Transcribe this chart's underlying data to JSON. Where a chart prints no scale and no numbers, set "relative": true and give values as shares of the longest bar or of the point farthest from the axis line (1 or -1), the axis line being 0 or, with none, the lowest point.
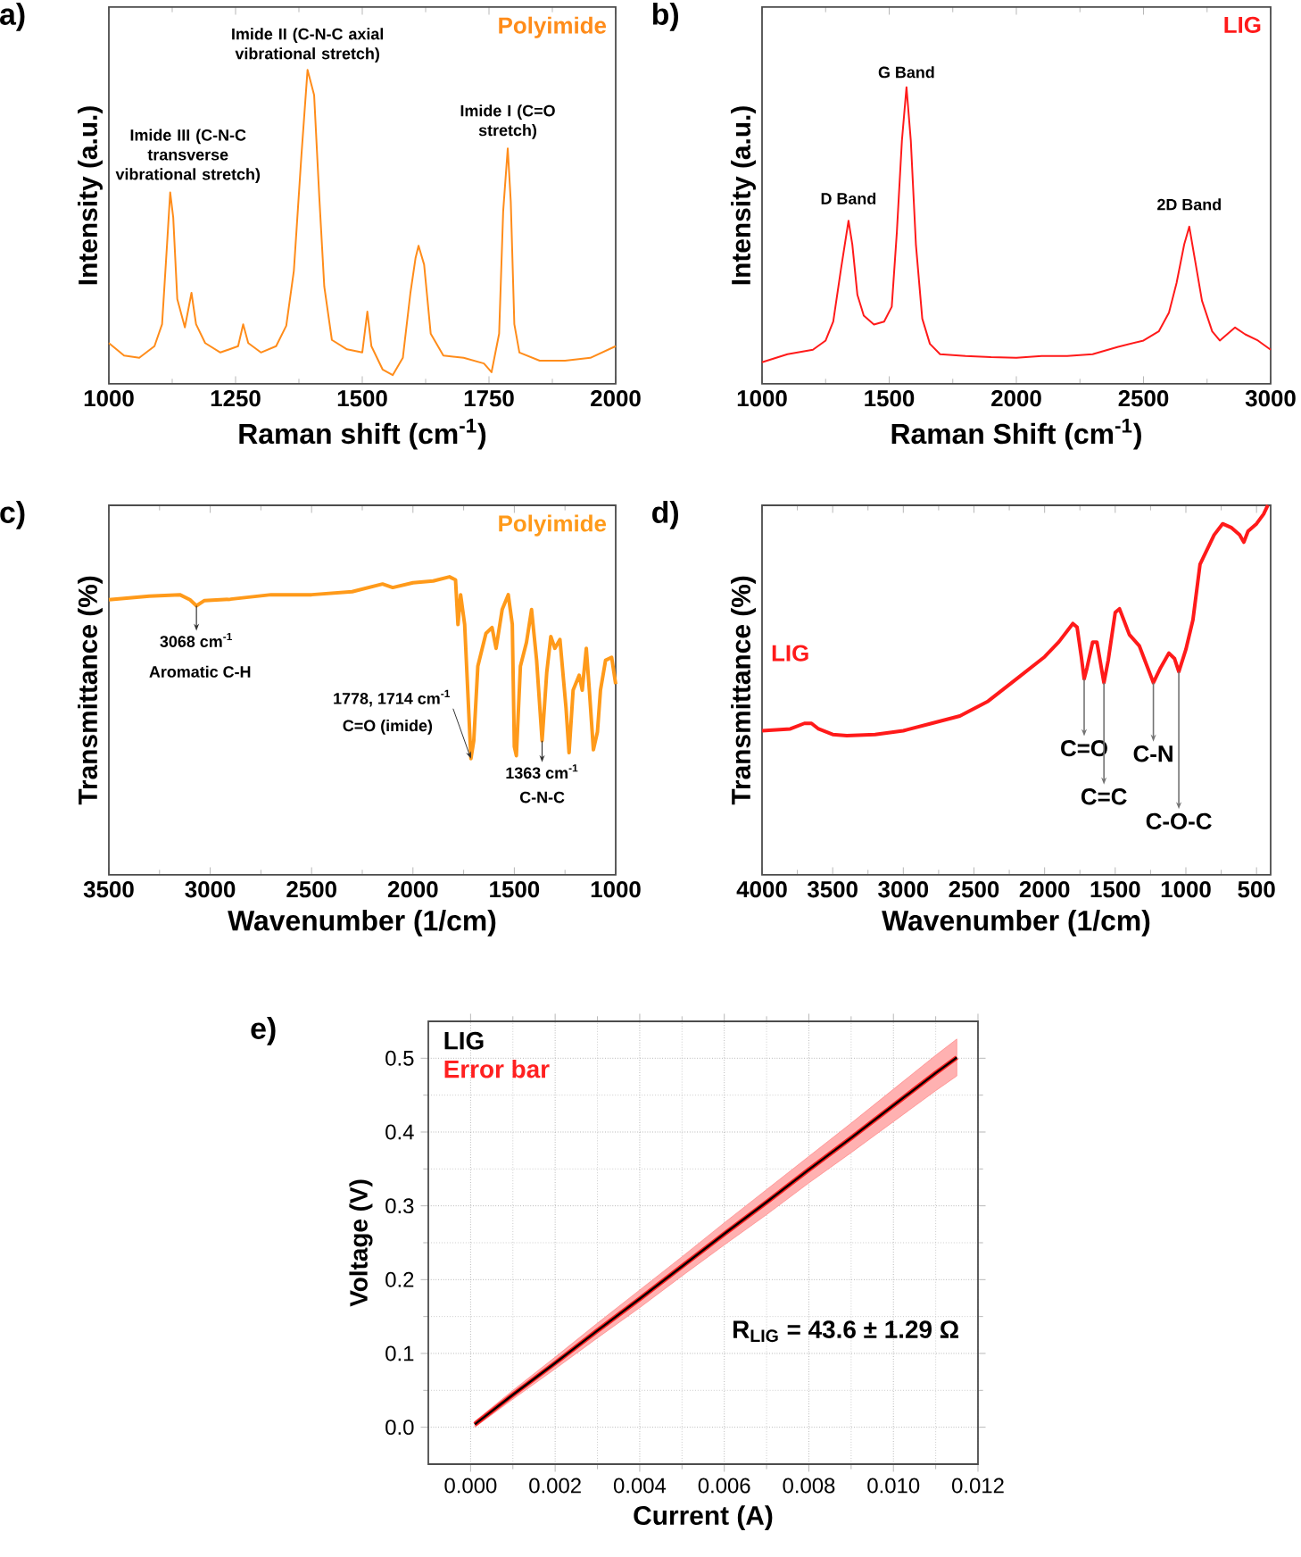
{
  "chart_data": [
    {
      "type": "line",
      "title": "a)",
      "xlabel": "Raman shift (cm$^{-1}$)",
      "ylabel": "Intensity (a.u.)",
      "relative": true,
      "xlim": [
        1000,
        2000
      ],
      "xticks": [
        1000,
        1250,
        1500,
        1750,
        2000
      ],
      "legend": "top right",
      "series": [
        {
          "name": "Polyimide",
          "color": "#ff8c1a",
          "x": [
            1000,
            1030,
            1060,
            1090,
            1105,
            1115,
            1121,
            1127,
            1135,
            1150,
            1163,
            1172,
            1190,
            1220,
            1255,
            1265,
            1275,
            1300,
            1330,
            1350,
            1365,
            1380,
            1392,
            1405,
            1415,
            1425,
            1440,
            1470,
            1500,
            1510,
            1518,
            1540,
            1560,
            1580,
            1595,
            1605,
            1611,
            1622,
            1635,
            1660,
            1700,
            1740,
            1755,
            1770,
            1778,
            1787,
            1793,
            1800,
            1810,
            1850,
            1900,
            1950,
            2000
          ],
          "values": [
            0.13,
            0.09,
            0.083,
            0.12,
            0.19,
            0.45,
            0.61,
            0.53,
            0.27,
            0.18,
            0.29,
            0.19,
            0.13,
            0.1,
            0.12,
            0.19,
            0.13,
            0.1,
            0.12,
            0.185,
            0.36,
            0.73,
            1.0,
            0.92,
            0.6,
            0.31,
            0.14,
            0.11,
            0.1,
            0.23,
            0.12,
            0.046,
            0.028,
            0.083,
            0.29,
            0.4,
            0.44,
            0.38,
            0.16,
            0.09,
            0.083,
            0.065,
            0.037,
            0.16,
            0.55,
            0.75,
            0.58,
            0.19,
            0.1,
            0.074,
            0.074,
            0.083,
            0.12
          ]
        }
      ],
      "annotations": [
        {
          "text": "Imide III (C-N-C transverse vibrational stretch)",
          "x": 1121,
          "y": 0.61
        },
        {
          "text": "Imide II (C-N-C axial vibrational stretch)",
          "x": 1392,
          "y": 1.0
        },
        {
          "text": "Imide I (C=O stretch)",
          "x": 1787,
          "y": 0.75
        }
      ]
    },
    {
      "type": "line",
      "title": "b)",
      "xlabel": "Raman Shift (cm$^{-1}$)",
      "ylabel": "Intensity (a.u.)",
      "relative": true,
      "xlim": [
        1000,
        3000
      ],
      "xticks": [
        1000,
        1500,
        2000,
        2500,
        3000
      ],
      "legend": "top right",
      "series": [
        {
          "name": "LIG",
          "color": "#ff1a1a",
          "x": [
            1000,
            1100,
            1200,
            1250,
            1280,
            1310,
            1340,
            1355,
            1375,
            1400,
            1440,
            1480,
            1510,
            1530,
            1550,
            1568,
            1585,
            1605,
            1630,
            1660,
            1700,
            1800,
            1900,
            2000,
            2100,
            2200,
            2300,
            2400,
            2500,
            2560,
            2600,
            2630,
            2660,
            2680,
            2700,
            2730,
            2770,
            2800,
            2860,
            2900,
            2950,
            3000
          ],
          "values": [
            0.073,
            0.1,
            0.115,
            0.146,
            0.21,
            0.385,
            0.55,
            0.47,
            0.3,
            0.23,
            0.2,
            0.21,
            0.26,
            0.51,
            0.82,
            1.0,
            0.82,
            0.47,
            0.22,
            0.135,
            0.1,
            0.094,
            0.09,
            0.088,
            0.094,
            0.094,
            0.1,
            0.125,
            0.146,
            0.177,
            0.24,
            0.34,
            0.47,
            0.53,
            0.43,
            0.28,
            0.177,
            0.146,
            0.19,
            0.167,
            0.146,
            0.115
          ]
        }
      ],
      "annotations": [
        {
          "text": "D Band",
          "x": 1340,
          "y": 0.55
        },
        {
          "text": "G Band",
          "x": 1568,
          "y": 1.0
        },
        {
          "text": "2D Band",
          "x": 2680,
          "y": 0.53
        }
      ]
    },
    {
      "type": "line",
      "title": "c)",
      "xlabel": "Wavenumber (1/cm)",
      "ylabel": "Transmittance (%)",
      "relative": true,
      "xlim": [
        3500,
        1000
      ],
      "xticks": [
        3500,
        3000,
        2500,
        2000,
        1500,
        1000
      ],
      "legend": "top right",
      "series": [
        {
          "name": "Polyimide",
          "color": "#ff9a1a",
          "x": [
            3500,
            3300,
            3150,
            3100,
            3068,
            3030,
            2900,
            2700,
            2500,
            2300,
            2150,
            2100,
            2000,
            1900,
            1820,
            1790,
            1778,
            1765,
            1745,
            1714,
            1700,
            1680,
            1640,
            1610,
            1590,
            1560,
            1530,
            1510,
            1500,
            1490,
            1470,
            1440,
            1415,
            1390,
            1363,
            1340,
            1320,
            1300,
            1275,
            1245,
            1230,
            1210,
            1180,
            1165,
            1145,
            1130,
            1110,
            1090,
            1075,
            1050,
            1020,
            1000
          ],
          "values": [
            0.923,
            0.935,
            0.94,
            0.923,
            0.903,
            0.92,
            0.925,
            0.94,
            0.94,
            0.95,
            0.976,
            0.964,
            0.98,
            0.986,
            1.0,
            0.99,
            0.84,
            0.94,
            0.84,
            0.39,
            0.45,
            0.7,
            0.81,
            0.83,
            0.76,
            0.89,
            0.94,
            0.84,
            0.43,
            0.4,
            0.7,
            0.78,
            0.89,
            0.72,
            0.45,
            0.68,
            0.8,
            0.76,
            0.79,
            0.56,
            0.41,
            0.62,
            0.67,
            0.62,
            0.76,
            0.62,
            0.42,
            0.48,
            0.62,
            0.72,
            0.73,
            0.64
          ]
        }
      ],
      "annotations": [
        {
          "text": "3068 cm$^{-1}$",
          "x": 3068,
          "y": 0.903
        },
        "Aromatic C-H",
        {
          "text": "1778, 1714 cm$^{-1}$",
          "x": 1714,
          "y": 0.39
        },
        "C=O (imide)",
        {
          "text": "1363 cm$^{-1}$",
          "x": 1363,
          "y": 0.45
        },
        "C-N-C"
      ]
    },
    {
      "type": "line",
      "title": "d)",
      "xlabel": "Wavenumber (1/cm)",
      "ylabel": "Transmittance (%)",
      "relative": true,
      "xlim": [
        4000,
        400
      ],
      "xticks": [
        4000,
        3500,
        3000,
        2500,
        2000,
        1500,
        1000,
        500
      ],
      "legend": "left",
      "series": [
        {
          "name": "LIG",
          "color": "#ff1a1a",
          "x": [
            4000,
            3800,
            3700,
            3650,
            3600,
            3500,
            3400,
            3200,
            3000,
            2800,
            2600,
            2400,
            2200,
            2000,
            1900,
            1800,
            1770,
            1740,
            1720,
            1700,
            1660,
            1630,
            1580,
            1550,
            1500,
            1470,
            1440,
            1400,
            1330,
            1280,
            1230,
            1180,
            1120,
            1080,
            1050,
            1000,
            950,
            900,
            850,
            800,
            740,
            680,
            620,
            590,
            560,
            500,
            450,
            420
          ],
          "values": [
            0.39,
            0.395,
            0.41,
            0.41,
            0.395,
            0.38,
            0.377,
            0.38,
            0.39,
            0.41,
            0.43,
            0.47,
            0.53,
            0.59,
            0.63,
            0.68,
            0.67,
            0.59,
            0.53,
            0.56,
            0.63,
            0.63,
            0.52,
            0.58,
            0.71,
            0.72,
            0.69,
            0.65,
            0.62,
            0.57,
            0.52,
            0.56,
            0.6,
            0.585,
            0.55,
            0.61,
            0.69,
            0.84,
            0.88,
            0.92,
            0.95,
            0.94,
            0.92,
            0.9,
            0.93,
            0.95,
            0.976,
            1.0
          ]
        }
      ],
      "annotations": [
        {
          "text": "C=O",
          "x": 1720,
          "y": 0.53
        },
        {
          "text": "C=C",
          "x": 1580,
          "y": 0.52
        },
        {
          "text": "C-N",
          "x": 1230,
          "y": 0.52
        },
        {
          "text": "C-O-C",
          "x": 1050,
          "y": 0.55
        }
      ]
    },
    {
      "type": "line",
      "title": "e)",
      "xlabel": "Current (A)",
      "ylabel": "Voltage (V)",
      "xlim": [
        -0.001,
        0.012
      ],
      "ylim": [
        -0.05,
        0.55
      ],
      "grid": true,
      "legend": "top left",
      "xticks": [
        {
          "value": 0,
          "label": "0.000"
        },
        {
          "value": 0.002,
          "label": "0.002"
        },
        {
          "value": 0.004,
          "label": "0.004"
        },
        {
          "value": 0.006,
          "label": "0.006"
        },
        {
          "value": 0.008,
          "label": "0.008"
        },
        {
          "value": 0.01,
          "label": "0.010"
        },
        {
          "value": 0.012,
          "label": "0.012"
        }
      ],
      "yticks": [
        {
          "value": 0,
          "label": "0.0"
        },
        0.1,
        0.2,
        0.3,
        0.4,
        0.5
      ],
      "series": [
        {
          "name": "LIG",
          "color": "#000000",
          "x": [
            0.0001,
            0.001,
            0.002,
            0.003,
            0.004,
            0.005,
            0.006,
            0.007,
            0.008,
            0.009,
            0.01,
            0.011,
            0.0115
          ],
          "values": [
            0.004,
            0.044,
            0.087,
            0.131,
            0.174,
            0.218,
            0.262,
            0.305,
            0.349,
            0.392,
            0.436,
            0.48,
            0.501
          ]
        },
        {
          "name": "Error bar",
          "color": "#ff2020",
          "x": [
            0.0001,
            0.001,
            0.002,
            0.003,
            0.004,
            0.005,
            0.006,
            0.007,
            0.008,
            0.009,
            0.01,
            0.011,
            0.0115
          ],
          "values": [
            0.004,
            0.044,
            0.087,
            0.131,
            0.174,
            0.218,
            0.262,
            0.305,
            0.349,
            0.392,
            0.436,
            0.48,
            0.501
          ],
          "lower": [
            0.0,
            0.038,
            0.079,
            0.121,
            0.162,
            0.205,
            0.247,
            0.288,
            0.331,
            0.372,
            0.414,
            0.456,
            0.476
          ],
          "upper": [
            0.008,
            0.05,
            0.095,
            0.141,
            0.186,
            0.231,
            0.277,
            0.322,
            0.367,
            0.412,
            0.458,
            0.504,
            0.526
          ]
        }
      ],
      "annotations": [
        "R$_{LIG}$ = 43.6 ± 1.29 Ω"
      ]
    }
  ]
}
